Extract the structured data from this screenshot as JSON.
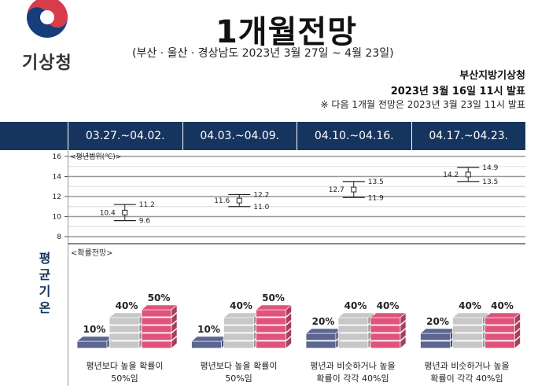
{
  "logo": {
    "name": "기상청"
  },
  "title": "1개월전망",
  "subtitle": "(부산 · 울산 · 경상남도 2023년 3월 27일 ~ 4월 23일)",
  "issuer": {
    "org": "부산지방기상청",
    "date": "2023년 3월 16일 11시 발표",
    "notice": "※ 다음 1개월 전망은 2023년 3월 23일 11시 발표"
  },
  "periods": [
    "03.27.~04.02.",
    "04.03.~04.09.",
    "04.10.~04.16.",
    "04.17.~04.23."
  ],
  "side_label": "평균기온",
  "colors": {
    "header_bg": "#16355e",
    "below": "#5c6691",
    "normal": "#c7c7c7",
    "above": "#e0547b"
  },
  "chart_data": [
    {
      "type": "range",
      "title": "<평년범위(℃)>",
      "ylim": [
        8,
        16
      ],
      "yticks": [
        8,
        10,
        12,
        14,
        16
      ],
      "grid": true,
      "categories": [
        "03.27.~04.02.",
        "04.03.~04.09.",
        "04.10.~04.16.",
        "04.17.~04.23."
      ],
      "series": [
        {
          "mean": 10.4,
          "low": 9.6,
          "high": 11.2
        },
        {
          "mean": 11.6,
          "low": 11.0,
          "high": 12.2
        },
        {
          "mean": 12.7,
          "low": 11.9,
          "high": 13.5
        },
        {
          "mean": 14.2,
          "low": 13.5,
          "high": 14.9
        }
      ]
    },
    {
      "type": "bar",
      "title": "<확률전망>",
      "categories": [
        "03.27.~04.02.",
        "04.03.~04.09.",
        "04.10.~04.16.",
        "04.17.~04.23."
      ],
      "series": [
        {
          "values": [
            10,
            10,
            20,
            20
          ]
        },
        {
          "values": [
            40,
            40,
            40,
            40
          ]
        },
        {
          "values": [
            50,
            50,
            40,
            40
          ]
        }
      ],
      "descriptions": [
        {
          "line1": "평년보다 높을 확률이",
          "line2": "50%임"
        },
        {
          "line1": "평년보다 높을 확률이",
          "line2": "50%임"
        },
        {
          "line1": "평년과 비슷하거나 높을",
          "line2": "확률이 각각 40%임"
        },
        {
          "line1": "평년과 비슷하거나 높을",
          "line2": "확률이 각각 40%임"
        }
      ]
    }
  ]
}
